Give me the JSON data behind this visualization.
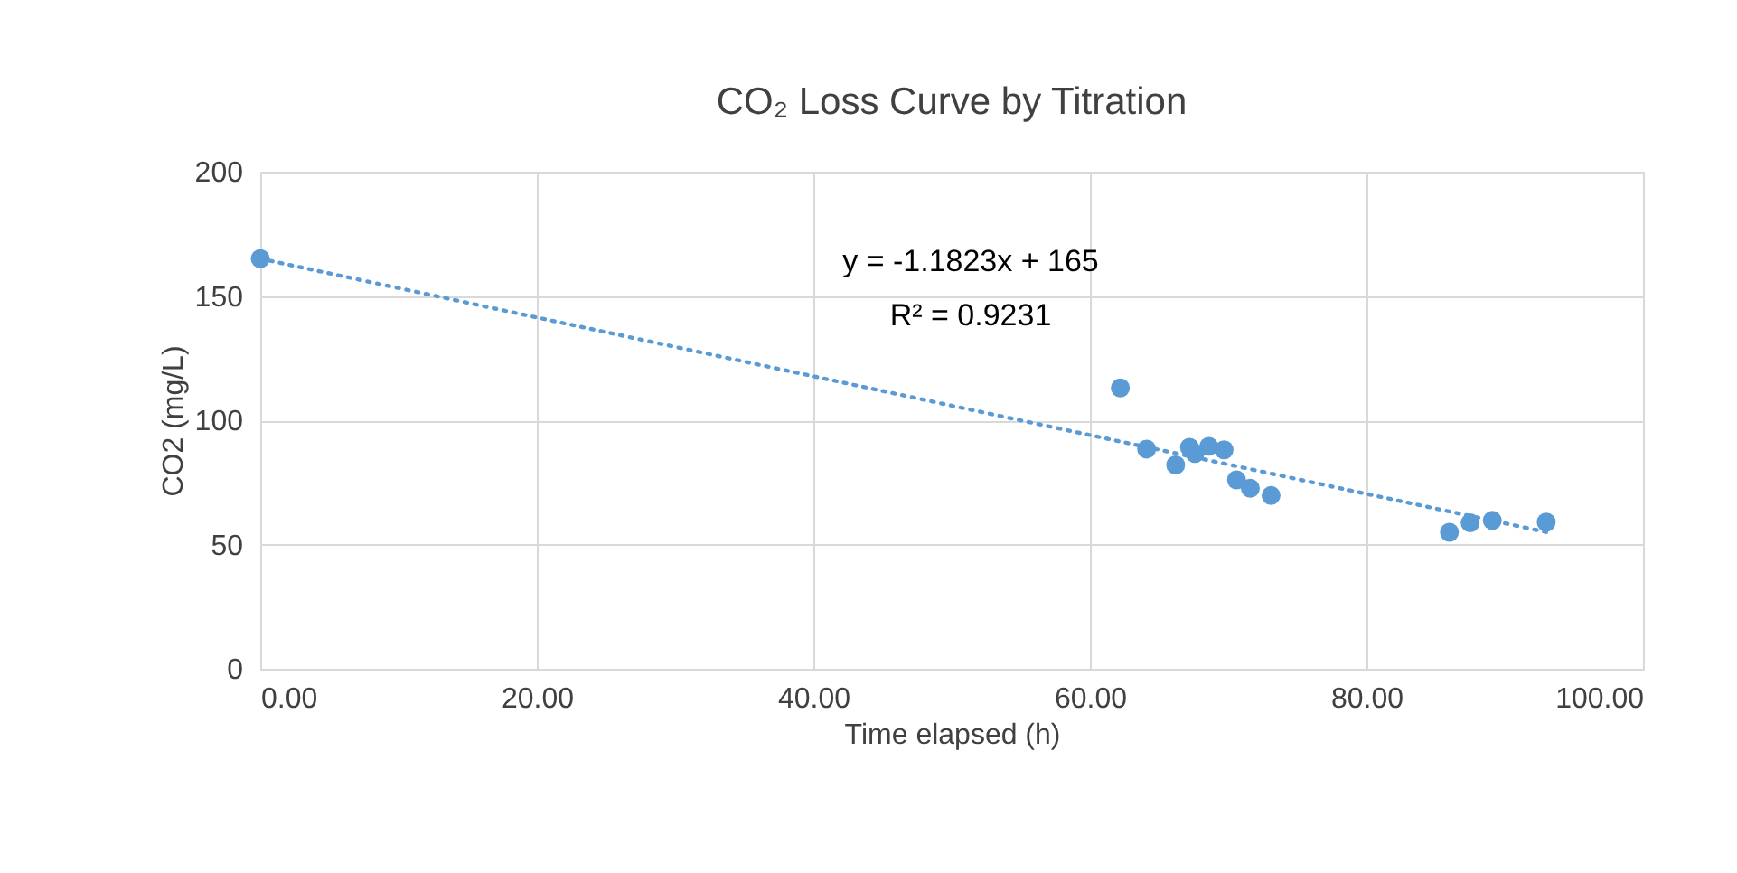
{
  "chart_data": {
    "type": "scatter",
    "title": "CO₂ Loss Curve by Titration",
    "xlabel": "Time elapsed (h)",
    "ylabel": "CO2 (mg/L)",
    "series": [
      {
        "color": "#5b9bd5",
        "marker": "circle",
        "x": [
          0,
          62.2,
          64.1,
          66.2,
          67.2,
          67.6,
          68.6,
          69.7,
          70.6,
          71.6,
          73.1,
          86.0,
          87.5,
          89.1,
          93.0
        ],
        "values": [
          165,
          113,
          88.4,
          82.0,
          89.1,
          86.6,
          89.5,
          88.1,
          76.0,
          72.6,
          69.7,
          54.9,
          58.7,
          59.7,
          59.0
        ]
      },
      {
        "type": "line",
        "color": "#5b9bd5",
        "line_style": "dotted",
        "marker": "none",
        "x": [
          0,
          93.0
        ],
        "values": [
          165,
          55.0
        ]
      }
    ],
    "annotations": [
      "y = -1.1823x + 165",
      "R² = 0.9231"
    ],
    "xlim": [
      0,
      100
    ],
    "xticks": [
      {
        "value": 0,
        "label": "0.00"
      },
      {
        "value": 20,
        "label": "20.00"
      },
      {
        "value": 40,
        "label": "40.00"
      },
      {
        "value": 60,
        "label": "60.00"
      },
      {
        "value": 80,
        "label": "80.00"
      },
      {
        "value": 100,
        "label": "100.00"
      }
    ],
    "ylim": [
      0,
      200
    ],
    "yticks": [
      0,
      50,
      100,
      150,
      200
    ],
    "grid": true
  }
}
